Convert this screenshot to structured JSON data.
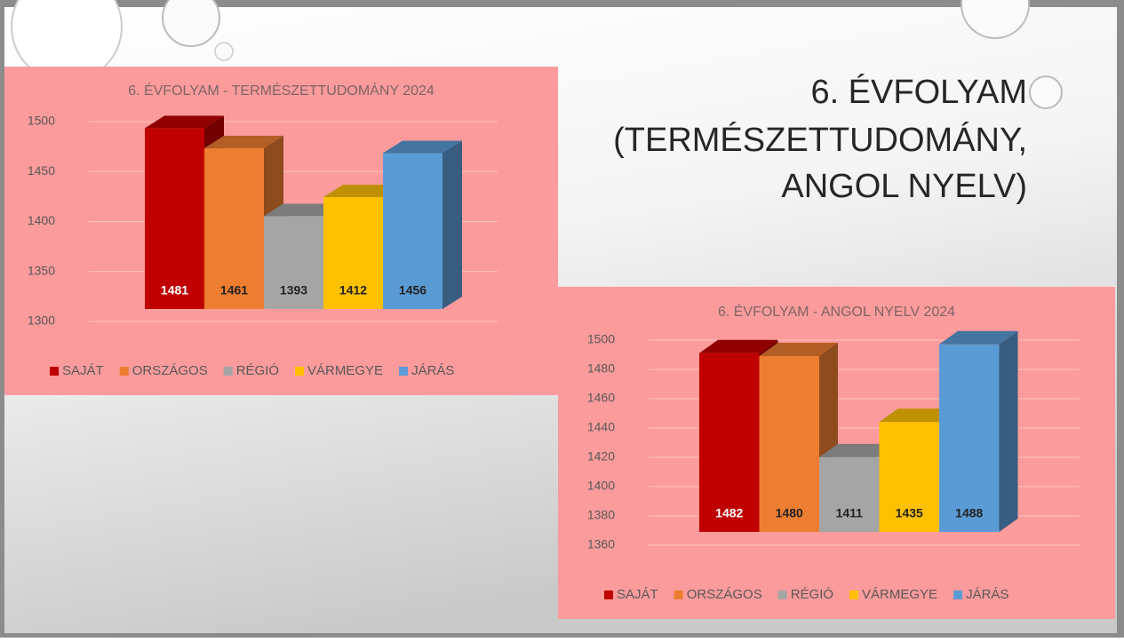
{
  "slide": {
    "title_lines": [
      "6. ÉVFOLYAM",
      "(TERMÉSZETTUDOMÁNY,",
      "ANGOL NYELV)"
    ]
  },
  "chart_data": [
    {
      "type": "bar",
      "title": "6. ÉVFOLYAM - TERMÉSZETTUDOMÁNY 2024",
      "categories": [
        null
      ],
      "series": [
        {
          "name": "SAJÁT",
          "color": "#c00000",
          "values": [
            1481
          ]
        },
        {
          "name": "ORSZÁGOS",
          "color": "#ed7d31",
          "values": [
            1461
          ]
        },
        {
          "name": "RÉGIÓ",
          "color": "#a5a5a5",
          "values": [
            1393
          ]
        },
        {
          "name": "VÁRMEGYE",
          "color": "#ffc000",
          "values": [
            1412
          ]
        },
        {
          "name": "JÁRÁS",
          "color": "#5b9bd5",
          "values": [
            1456
          ]
        }
      ],
      "ylim": [
        1300,
        1500
      ],
      "yticks": [
        1300,
        1350,
        1400,
        1450,
        1500
      ],
      "grid": true,
      "legend": "bottom"
    },
    {
      "type": "bar",
      "title": "6. ÉVFOLYAM - ANGOL NYELV 2024",
      "categories": [
        null
      ],
      "series": [
        {
          "name": "SAJÁT",
          "color": "#c00000",
          "values": [
            1482
          ]
        },
        {
          "name": "ORSZÁGOS",
          "color": "#ed7d31",
          "values": [
            1480
          ]
        },
        {
          "name": "RÉGIÓ",
          "color": "#a5a5a5",
          "values": [
            1411
          ]
        },
        {
          "name": "VÁRMEGYE",
          "color": "#ffc000",
          "values": [
            1435
          ]
        },
        {
          "name": "JÁRÁS",
          "color": "#5b9bd5",
          "values": [
            1488
          ]
        }
      ],
      "ylim": [
        1360,
        1500
      ],
      "yticks": [
        1360,
        1380,
        1400,
        1420,
        1440,
        1460,
        1480,
        1500
      ],
      "grid": true,
      "legend": "bottom"
    }
  ]
}
